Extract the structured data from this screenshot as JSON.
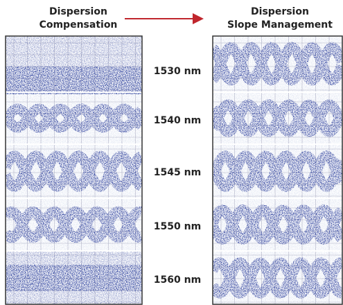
{
  "left_title": {
    "line1": "Dispersion",
    "line2": "Compensation"
  },
  "right_title": {
    "line1": "Dispersion",
    "line2": "Slope Management"
  },
  "wavelengths": [
    "1530 nm",
    "1540 nm",
    "1545 nm",
    "1550 nm",
    "1560 nm"
  ]
}
